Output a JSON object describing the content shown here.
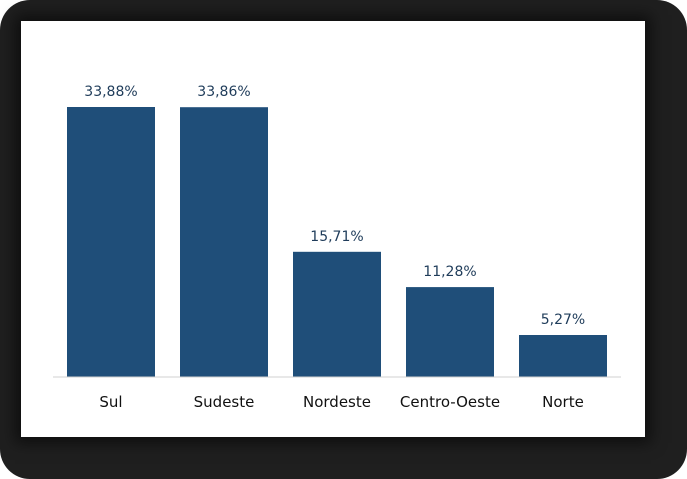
{
  "chart_data": {
    "type": "bar",
    "categories": [
      "Sul",
      "Sudeste",
      "Nordeste",
      "Centro-Oeste",
      "Norte"
    ],
    "values": [
      33.88,
      33.86,
      15.71,
      11.28,
      5.27
    ],
    "value_labels": [
      "33,88%",
      "33,86%",
      "15,71%",
      "11,28%",
      "5,27%"
    ],
    "title": "",
    "xlabel": "",
    "ylabel": "",
    "ylim": [
      0,
      33.88
    ],
    "grid": false,
    "legend": "none",
    "bar_color": "#1f4e79"
  }
}
